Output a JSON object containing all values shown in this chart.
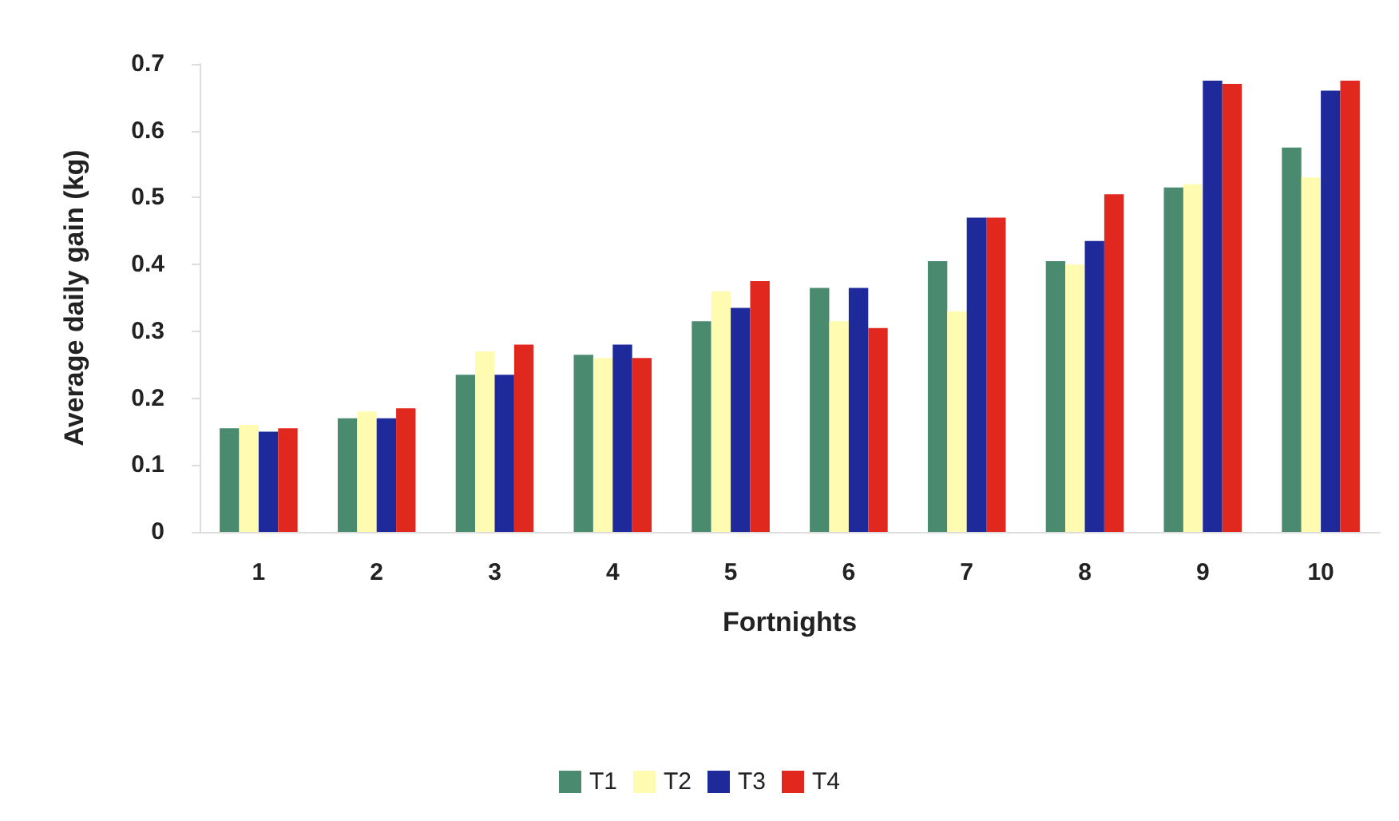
{
  "chart_data": {
    "type": "bar",
    "xlabel": "Fortnights",
    "ylabel": "Average daily gain (kg)",
    "categories": [
      "1",
      "2",
      "3",
      "4",
      "5",
      "6",
      "7",
      "8",
      "9",
      "10"
    ],
    "series": [
      {
        "name": "T1",
        "color": "#4a8a6e",
        "values": [
          0.155,
          0.17,
          0.235,
          0.265,
          0.315,
          0.365,
          0.405,
          0.405,
          0.515,
          0.575
        ]
      },
      {
        "name": "T2",
        "color": "#fffbb0",
        "values": [
          0.16,
          0.18,
          0.27,
          0.26,
          0.36,
          0.315,
          0.33,
          0.4,
          0.52,
          0.53
        ]
      },
      {
        "name": "T3",
        "color": "#1f2a9a",
        "values": [
          0.15,
          0.17,
          0.235,
          0.28,
          0.335,
          0.365,
          0.47,
          0.435,
          0.675,
          0.66
        ]
      },
      {
        "name": "T4",
        "color": "#e0281e",
        "values": [
          0.155,
          0.185,
          0.28,
          0.26,
          0.375,
          0.305,
          0.47,
          0.505,
          0.67,
          0.675
        ]
      }
    ],
    "ylim": [
      0,
      0.7
    ],
    "yticks": [
      0,
      0.1,
      0.2,
      0.3,
      0.4,
      0.5,
      0.6,
      0.7
    ],
    "grid": false,
    "legend": "bottom"
  }
}
